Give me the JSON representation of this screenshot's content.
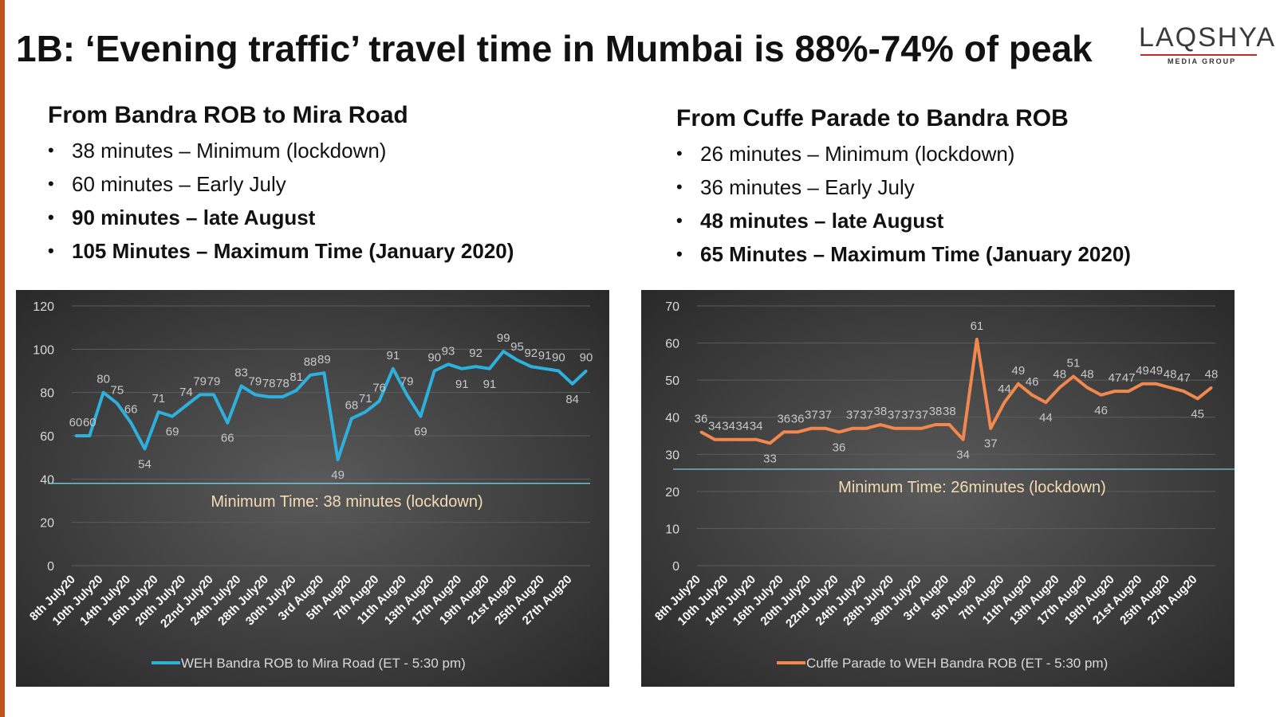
{
  "slide_title": "1B: ‘Evening traffic’ travel time in Mumbai is 88%-74% of peak",
  "logo": {
    "main": "LAQSHYA",
    "sub": "MEDIA GROUP"
  },
  "left_block": {
    "title": "From Bandra ROB to Mira Road",
    "bullets": [
      "38 minutes – Minimum (lockdown)",
      "60 minutes – Early July",
      "90 minutes – late August",
      "105 Minutes – Maximum Time (January 2020)"
    ]
  },
  "right_block": {
    "title": "From Cuffe Parade to Bandra ROB",
    "bullets": [
      "26 minutes – Minimum (lockdown)",
      "36 minutes – Early July",
      "48 minutes – late August",
      "65 Minutes – Maximum Time (January 2020)"
    ]
  },
  "chart_data": [
    {
      "type": "line",
      "title": "",
      "ylim": [
        0,
        120
      ],
      "yticks": [
        0,
        20,
        40,
        60,
        80,
        100,
        120
      ],
      "grid": true,
      "legend": "bottom",
      "background": "dark-gradient",
      "series_color": "#2eb0dc",
      "x_tick_labels": [
        "8th July20",
        "10th July20",
        "14th July20",
        "16th July20",
        "20th July20",
        "22nd July20",
        "24th July20",
        "28th July20",
        "30th July20",
        "3rd Aug20",
        "5th Aug20",
        "7th Aug20",
        "11th Aug20",
        "13th Aug20",
        "17th Aug20",
        "19th Aug20",
        "21st Aug20",
        "25th Aug20",
        "27th Aug20"
      ],
      "series": [
        {
          "name": "WEH Bandra ROB to Mira Road (ET - 5:30 pm)",
          "values": [
            60,
            60,
            80,
            75,
            66,
            54,
            71,
            69,
            74,
            79,
            79,
            66,
            83,
            79,
            78,
            78,
            81,
            88,
            89,
            49,
            68,
            71,
            76,
            91,
            79,
            69,
            90,
            93,
            91,
            92,
            91,
            99,
            95,
            92,
            91,
            90,
            84,
            90
          ]
        }
      ],
      "reference_line": {
        "value": 38,
        "label": "Minimum Time: 38 minutes (lockdown)"
      }
    },
    {
      "type": "line",
      "title": "",
      "ylim": [
        0,
        70
      ],
      "yticks": [
        0,
        10,
        20,
        30,
        40,
        50,
        60,
        70
      ],
      "grid": true,
      "legend": "bottom",
      "background": "dark-gradient",
      "series_color": "#f0884f",
      "x_tick_labels": [
        "8th July20",
        "10th July20",
        "14th July20",
        "16th July20",
        "20th July20",
        "22nd July20",
        "24th July20",
        "28th July20",
        "30th July20",
        "3rd Aug20",
        "5th Aug20",
        "7th Aug20",
        "11th Aug20",
        "13th Aug20",
        "17th Aug20",
        "19th Aug20",
        "21st Aug20",
        "25th Aug20",
        "27th Aug20"
      ],
      "series": [
        {
          "name": "Cuffe Parade to WEH Bandra ROB (ET - 5:30 pm)",
          "values": [
            36,
            34,
            34,
            34,
            34,
            33,
            36,
            36,
            37,
            37,
            36,
            37,
            37,
            38,
            37,
            37,
            37,
            38,
            38,
            34,
            61,
            37,
            44,
            49,
            46,
            44,
            48,
            51,
            48,
            46,
            47,
            47,
            49,
            49,
            48,
            47,
            45,
            48
          ]
        }
      ],
      "reference_line": {
        "value": 26,
        "label": "Minimum Time: 26minutes (lockdown)"
      }
    }
  ]
}
